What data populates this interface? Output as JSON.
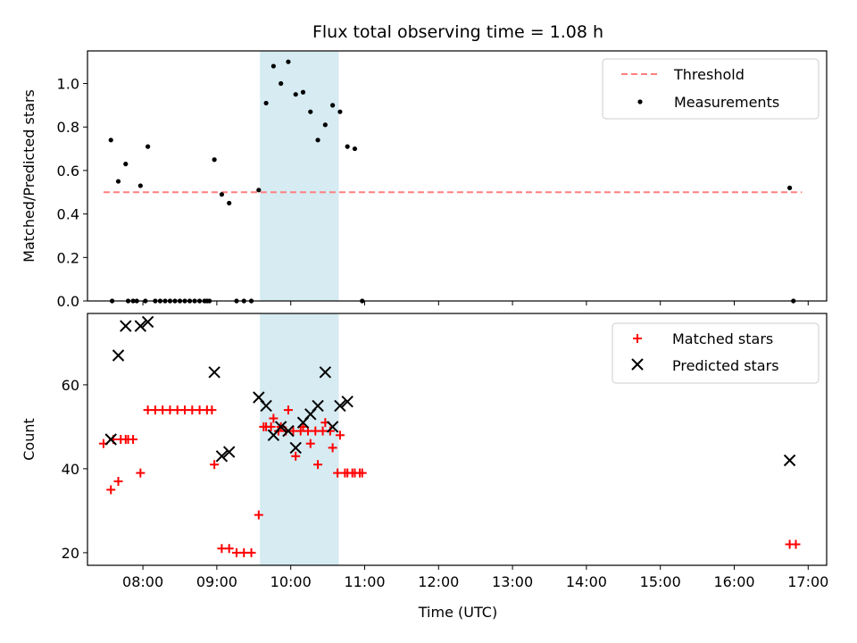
{
  "chart_data": {
    "type": "scatter",
    "title": "Flux total observing time = 1.08 h",
    "xlabel": "Time (UTC)",
    "x_ticks": [
      "08:00",
      "09:00",
      "10:00",
      "11:00",
      "12:00",
      "13:00",
      "14:00",
      "15:00",
      "16:00",
      "17:00"
    ],
    "xlim": [
      "07:15",
      "17:15"
    ],
    "shaded_span": {
      "start": "09:35",
      "end": "10:39",
      "color": "#add8e6"
    },
    "top_panel": {
      "ylabel": "Matched/Predicted stars",
      "ylim": [
        0,
        1.15
      ],
      "y_ticks": [
        "0.0",
        "0.2",
        "0.4",
        "0.6",
        "0.8",
        "1.0"
      ],
      "legend_position": "upper-right",
      "series": [
        {
          "name": "Threshold",
          "style": "dashed-line",
          "color": "#ff7f7f",
          "x": [
            "07:28",
            "16:55"
          ],
          "y": [
            0.5,
            0.5
          ]
        },
        {
          "name": "Measurements",
          "style": "dot",
          "color": "#000000",
          "x": [
            "07:34",
            "07:40",
            "07:46",
            "07:52",
            "07:58",
            "08:04",
            "07:48",
            "07:55",
            "08:10",
            "08:14",
            "08:18",
            "08:22",
            "08:26",
            "08:30",
            "08:34",
            "08:38",
            "08:42",
            "08:46",
            "08:52",
            "08:58",
            "09:04",
            "09:10",
            "09:16",
            "09:22",
            "09:28",
            "09:34",
            "09:40",
            "09:46",
            "09:52",
            "09:58",
            "10:04",
            "10:10",
            "10:16",
            "10:22",
            "10:28",
            "10:34",
            "10:40",
            "10:46",
            "10:52",
            "10:58",
            "16:45",
            "16:48",
            "08:02",
            "07:35",
            "08:50",
            "08:54"
          ],
          "y": [
            0.74,
            0.55,
            0.63,
            0.0,
            0.53,
            0.71,
            0.0,
            0.0,
            0.0,
            0.0,
            0.0,
            0.0,
            0.0,
            0.0,
            0.0,
            0.0,
            0.0,
            0.0,
            0.0,
            0.65,
            0.49,
            0.45,
            0.0,
            0.0,
            0.0,
            0.51,
            0.91,
            1.08,
            1.0,
            1.1,
            0.95,
            0.96,
            0.87,
            0.74,
            0.81,
            0.9,
            0.87,
            0.71,
            0.7,
            0.0,
            0.52,
            0.0,
            0.0,
            0.0,
            0.0,
            0.0
          ]
        }
      ]
    },
    "bottom_panel": {
      "ylabel": "Count",
      "ylim": [
        17,
        77
      ],
      "y_ticks": [
        "20",
        "40",
        "60"
      ],
      "legend_position": "upper-right",
      "series": [
        {
          "name": "Matched stars",
          "marker": "plus",
          "color": "#ff0000",
          "x": [
            "07:28",
            "07:34",
            "07:40",
            "07:46",
            "07:52",
            "07:58",
            "08:04",
            "08:10",
            "08:16",
            "08:22",
            "08:28",
            "08:34",
            "08:40",
            "08:46",
            "08:52",
            "08:58",
            "09:04",
            "09:10",
            "09:16",
            "09:22",
            "09:28",
            "09:34",
            "09:40",
            "09:46",
            "09:52",
            "09:58",
            "10:04",
            "10:10",
            "10:16",
            "10:22",
            "10:28",
            "10:34",
            "10:40",
            "10:46",
            "10:52",
            "10:58",
            "16:45",
            "16:50",
            "07:36",
            "07:42",
            "07:48",
            "08:56",
            "09:38",
            "09:44",
            "09:50",
            "09:56",
            "10:02",
            "10:08",
            "10:14",
            "10:20",
            "10:26",
            "10:32",
            "10:38",
            "10:44",
            "10:50",
            "10:56"
          ],
          "y": [
            46,
            35,
            37,
            47,
            47,
            39,
            54,
            54,
            54,
            54,
            54,
            54,
            54,
            54,
            54,
            41,
            21,
            21,
            20,
            20,
            20,
            29,
            50,
            52,
            50,
            54,
            43,
            50,
            46,
            41,
            51,
            45,
            48,
            39,
            39,
            39,
            22,
            22,
            47,
            47,
            47,
            54,
            50,
            50,
            49,
            49,
            49,
            49,
            49,
            49,
            49,
            49,
            39,
            39,
            39,
            39
          ]
        },
        {
          "name": "Predicted stars",
          "marker": "x",
          "color": "#000000",
          "x": [
            "07:34",
            "07:40",
            "07:46",
            "07:58",
            "08:04",
            "08:58",
            "09:04",
            "09:10",
            "09:34",
            "09:40",
            "09:46",
            "09:52",
            "09:58",
            "10:04",
            "10:10",
            "10:16",
            "10:22",
            "10:28",
            "10:34",
            "10:40",
            "10:46",
            "16:45"
          ],
          "y": [
            47,
            67,
            74,
            74,
            75,
            63,
            43,
            44,
            57,
            55,
            48,
            50,
            49,
            45,
            51,
            53,
            55,
            63,
            50,
            55,
            56,
            42
          ]
        }
      ]
    }
  }
}
